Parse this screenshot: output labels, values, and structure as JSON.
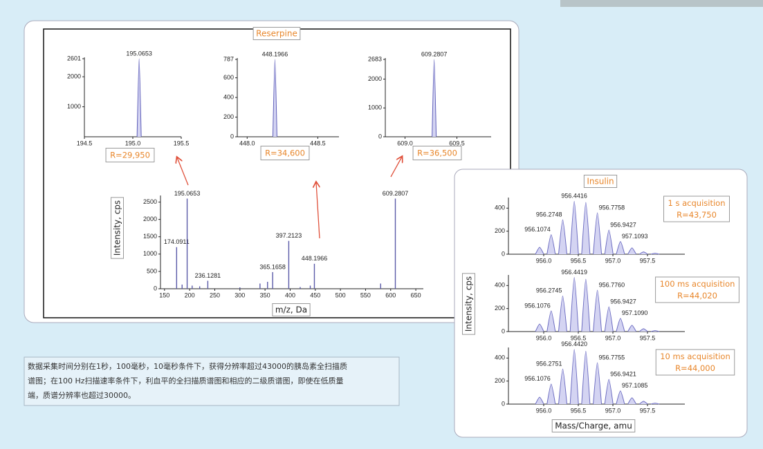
{
  "reserpine": {
    "title": "Reserpine",
    "y_label": "Intensity, cps",
    "x_label": "m/z, Da"
  },
  "insulin": {
    "title": "Insulin",
    "y_label": "Intensity, cps",
    "x_label": "Mass/Charge, amu"
  },
  "caption": {
    "lines": [
      "数据采集时间分别在1秒，100毫秒，10毫秒条件下，获得分辨率超过43000的胰岛素全扫描质",
      "谱图；在100 Hz扫描速率条件下，利血平的全扫描质谱图和相应的二级质谱图，即使在低质量",
      "端，质谱分辨率也超过30000。"
    ]
  },
  "chart_data": [
    {
      "type": "profile",
      "color": "#5c5cb8",
      "x": [
        195.0653
      ],
      "values": [
        2601
      ],
      "peak_labels": [
        "195.0653"
      ],
      "xlim": [
        194.5,
        195.5
      ],
      "xticks": [
        194.5,
        {
          "value": 195,
          "label": "195.0"
        },
        195.5
      ],
      "ylim": [
        0,
        2601
      ],
      "yticks": [
        1000,
        2000,
        2601
      ],
      "note": [
        "R=29,950"
      ]
    },
    {
      "type": "profile",
      "color": "#5c5cb8",
      "x": [
        448.1966
      ],
      "values": [
        787
      ],
      "peak_labels": [
        "448.1966"
      ],
      "xlim": [
        447.93,
        448.65
      ],
      "xticks": [
        {
          "value": 448,
          "label": "448.0"
        },
        448.5
      ],
      "ylim": [
        0,
        787
      ],
      "yticks": [
        0,
        200,
        400,
        600,
        787
      ],
      "note": [
        "R=34,600"
      ]
    },
    {
      "type": "profile",
      "color": "#5c5cb8",
      "x": [
        609.2807
      ],
      "values": [
        2683
      ],
      "peak_labels": [
        "609.2807"
      ],
      "xlim": [
        608.81,
        609.83
      ],
      "xticks": [
        {
          "value": 609,
          "label": "609.0"
        },
        609.5
      ],
      "ylim": [
        0,
        2683
      ],
      "yticks": [
        0,
        1000,
        2000,
        2683
      ],
      "note": [
        "R=36,500"
      ]
    },
    {
      "type": "stem",
      "color": "#5a5aa8",
      "x": [
        174.0911,
        185,
        195.0653,
        205,
        220,
        236.1281,
        300,
        340,
        355,
        365.1658,
        397.2123,
        420,
        440,
        448.1966,
        580,
        609.2807
      ],
      "values": [
        1200,
        120,
        2600,
        90,
        70,
        230,
        40,
        150,
        200,
        480,
        1380,
        50,
        90,
        720,
        150,
        2600
      ],
      "peak_labels": [
        "174.0911",
        null,
        "195.0653",
        null,
        null,
        "236.1281",
        null,
        null,
        null,
        "365.1658",
        "397.2123",
        null,
        null,
        "448.1966",
        null,
        "609.2807"
      ],
      "xlim": [
        142,
        665
      ],
      "xticks": [
        150,
        200,
        250,
        300,
        350,
        400,
        450,
        500,
        550,
        600,
        650
      ],
      "ylim": [
        0,
        2650
      ],
      "yticks": [
        0,
        500,
        1000,
        1500,
        2000,
        2500
      ]
    },
    {
      "type": "profile",
      "color": "#6a6ac0",
      "x": [
        955.9405,
        956.1074,
        956.2748,
        956.4416,
        956.6085,
        956.7758,
        956.9427,
        957.1093,
        957.276,
        957.443,
        957.61
      ],
      "values": [
        60,
        170,
        300,
        460,
        450,
        360,
        210,
        110,
        55,
        20,
        8
      ],
      "peak_labels": [
        null,
        "956.1074",
        "956.2748",
        "956.4416",
        null,
        "956.7758",
        "956.9427",
        "957.1093",
        null,
        null,
        null
      ],
      "xlim": [
        955.49,
        958.04
      ],
      "xticks": [
        {
          "value": 956,
          "label": "956.0"
        },
        956.5,
        {
          "value": 957,
          "label": "957.0"
        },
        957.5
      ],
      "ylim": [
        0,
        480
      ],
      "yticks": [
        0,
        200,
        400
      ],
      "note": [
        "1 s acquisition",
        "R=43,750"
      ]
    },
    {
      "type": "profile",
      "color": "#6a6ac0",
      "x": [
        955.9405,
        956.1076,
        956.2745,
        956.4419,
        956.6085,
        956.776,
        956.9427,
        957.109,
        957.276,
        957.443,
        957.61
      ],
      "values": [
        65,
        180,
        310,
        470,
        455,
        360,
        215,
        115,
        55,
        25,
        8
      ],
      "peak_labels": [
        null,
        "956.1076",
        "956.2745",
        "956.4419",
        null,
        "956.7760",
        "956.9427",
        "957.1090",
        null,
        null,
        null
      ],
      "xlim": [
        955.49,
        958.04
      ],
      "xticks": [
        {
          "value": 956,
          "label": "956.0"
        },
        956.5,
        {
          "value": 957,
          "label": "957.0"
        },
        957.5
      ],
      "ylim": [
        0,
        480
      ],
      "yticks": [
        0,
        200,
        400
      ],
      "note": [
        "100 ms acquisition",
        "R=44,020"
      ]
    },
    {
      "type": "profile",
      "color": "#6a6ac0",
      "x": [
        955.9405,
        956.1076,
        956.2751,
        956.442,
        956.6085,
        956.7755,
        956.9421,
        957.1085,
        957.276,
        957.443,
        957.61
      ],
      "values": [
        60,
        175,
        305,
        475,
        460,
        360,
        215,
        115,
        55,
        25,
        8
      ],
      "peak_labels": [
        null,
        "956.1076",
        "956.2751",
        "956.4420",
        null,
        "956.7755",
        "956.9421",
        "957.1085",
        null,
        null,
        null
      ],
      "xlim": [
        955.49,
        958.04
      ],
      "xticks": [
        {
          "value": 956,
          "label": "956.0"
        },
        956.5,
        {
          "value": 957,
          "label": "957.0"
        },
        957.5
      ],
      "ylim": [
        0,
        480
      ],
      "yticks": [
        0,
        200,
        400
      ],
      "note": [
        "10 ms acquisition",
        "R=44,000"
      ]
    }
  ]
}
